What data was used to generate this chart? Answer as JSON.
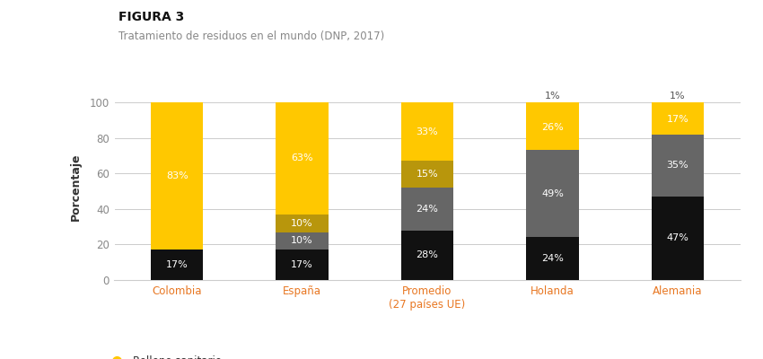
{
  "title": "FIGURA 3",
  "subtitle": "Tratamiento de residuos en el mundo (DNP, 2017)",
  "ylabel": "Porcentaje",
  "categories": [
    "Colombia",
    "España",
    "Promedio\n(27 países UE)",
    "Holanda",
    "Alemania"
  ],
  "series": {
    "Relleno sanitario": [
      83,
      63,
      33,
      26,
      17
    ],
    "Biológico": [
      0,
      10,
      15,
      0,
      0
    ],
    "Térmico": [
      0,
      10,
      24,
      49,
      35
    ],
    "Reciclaje": [
      17,
      17,
      28,
      24,
      47
    ]
  },
  "extra_top": [
    0,
    0,
    0,
    1,
    1
  ],
  "colors": {
    "Relleno sanitario": "#FFC800",
    "Biológico": "#B8960C",
    "Térmico": "#666666",
    "Reciclaje": "#111111"
  },
  "extra_color": "#FFC800",
  "ylim": [
    0,
    105
  ],
  "yticks": [
    0,
    20,
    40,
    60,
    80,
    100
  ],
  "background_color": "#ffffff",
  "title_fontsize": 10,
  "subtitle_fontsize": 8.5,
  "ylabel_fontsize": 9,
  "tick_fontsize": 8.5,
  "bar_label_fontsize": 8,
  "legend_fontsize": 8.5,
  "xtick_color": "#E87722",
  "ytick_color": "#888888",
  "subtitle_color": "#888888",
  "label_color_dark": "#555555"
}
